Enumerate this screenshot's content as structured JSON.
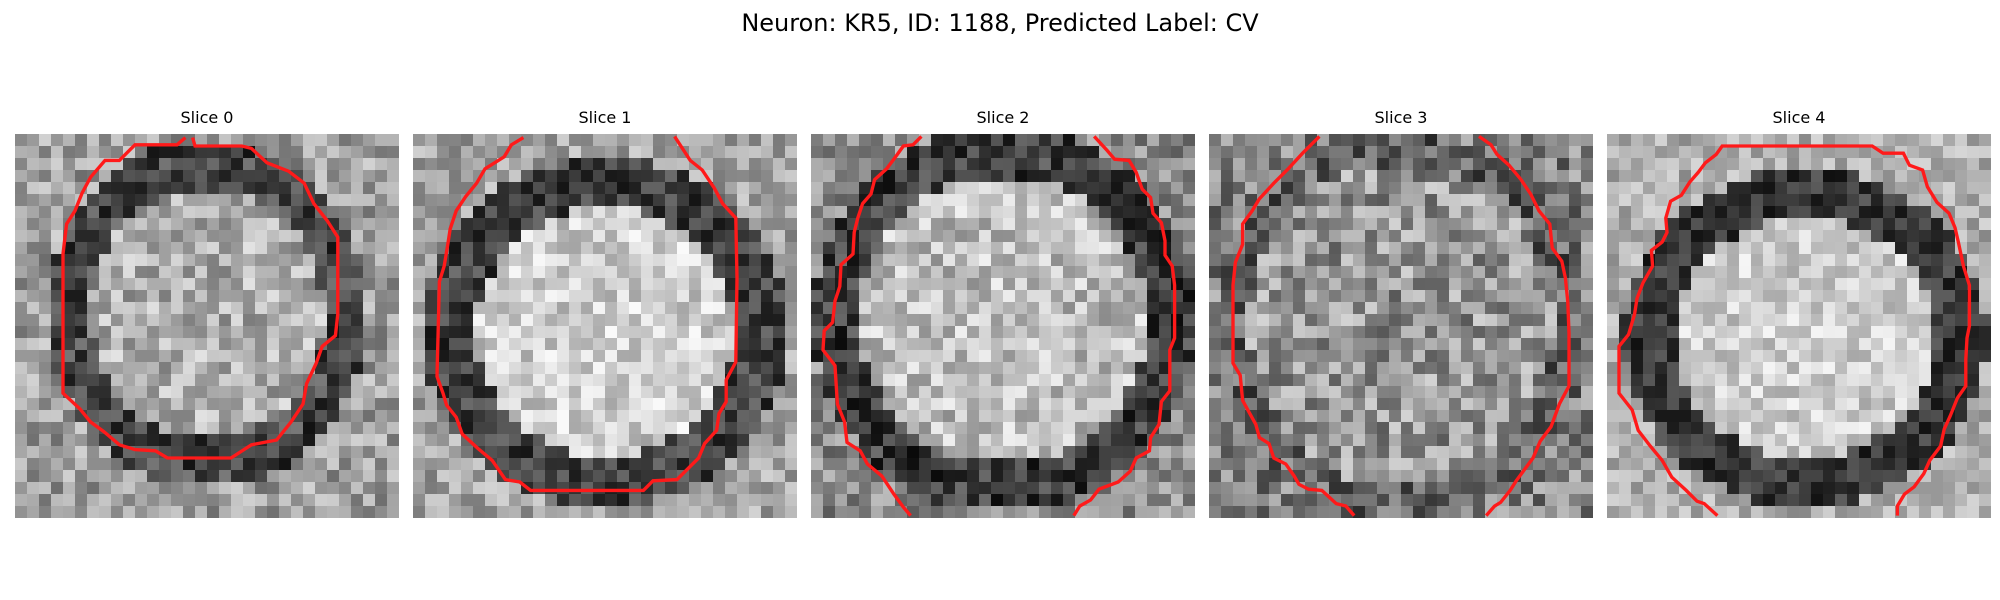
{
  "figure": {
    "title": "Neuron: KR5, ID: 1188, Predicted Label: CV"
  },
  "contour_color": "#ff1a1a",
  "panels": [
    {
      "title": "Slice 0",
      "grid": 32,
      "seed": 101,
      "base": 160,
      "noise": 52,
      "outline_gray": 70,
      "blob": {
        "cx": 16,
        "cy": 15,
        "rx": 11.5,
        "ry": 12.5,
        "inner_gray": 175,
        "ring_width": 2.0
      }
    },
    {
      "title": "Slice 1",
      "grid": 32,
      "seed": 202,
      "base": 165,
      "noise": 46,
      "outline_gray": 65,
      "blob": {
        "cx": 16,
        "cy": 16.5,
        "rx": 13.0,
        "ry": 12.5,
        "inner_gray": 205,
        "ring_width": 2.2
      }
    },
    {
      "title": "Slice 2",
      "grid": 32,
      "seed": 303,
      "base": 140,
      "noise": 50,
      "outline_gray": 60,
      "blob": {
        "cx": 16,
        "cy": 15.5,
        "rx": 14.0,
        "ry": 14.0,
        "inner_gray": 190,
        "ring_width": 2.0
      }
    },
    {
      "title": "Slice 3",
      "grid": 32,
      "seed": 404,
      "base": 130,
      "noise": 62,
      "outline_gray": 100,
      "blob": {
        "cx": 16,
        "cy": 16,
        "rx": 14.0,
        "ry": 15.0,
        "inner_gray": 150,
        "ring_width": 1.5
      }
    },
    {
      "title": "Slice 4",
      "grid": 32,
      "seed": 505,
      "base": 175,
      "noise": 40,
      "outline_gray": 55,
      "blob": {
        "cx": 16.5,
        "cy": 17,
        "rx": 13.0,
        "ry": 12.0,
        "inner_gray": 205,
        "ring_width": 2.2
      }
    }
  ]
}
